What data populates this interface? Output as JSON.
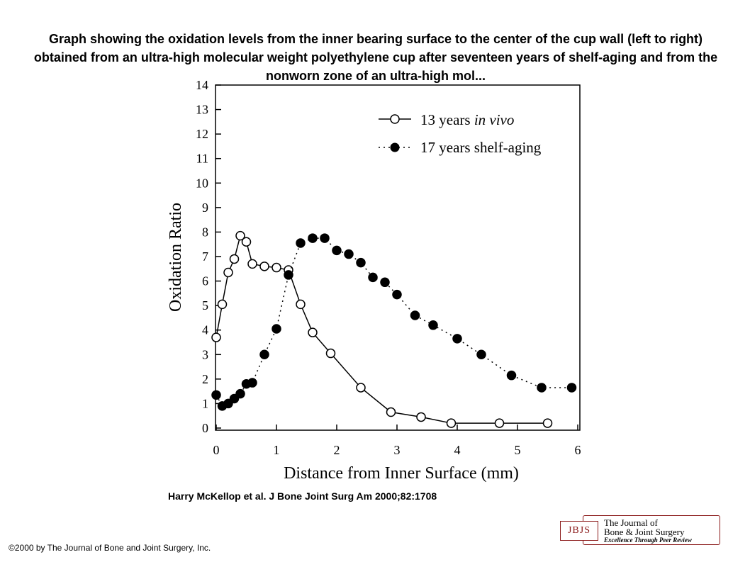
{
  "slide": {
    "title": "Graph showing the oxidation levels from the inner bearing surface to the center of the cup wall (left to right) obtained from an ultra-high molecular weight polyethylene cup after seventeen years of shelf-aging and from the nonworn zone of an ultra-high mol...",
    "citation": "Harry McKellop et al. J Bone Joint Surg Am 2000;82:1708",
    "copyright": "©2000 by The Journal of Bone and Joint Surgery, Inc."
  },
  "logo": {
    "mark": "JBJS",
    "line1": "The Journal of",
    "line2": "Bone & Joint Surgery",
    "tagline": "Excellence Through Peer Review",
    "color": "#8b1a1a"
  },
  "chart_data": {
    "type": "line",
    "title": "",
    "xlabel": "Distance from Inner Surface (mm)",
    "ylabel": "Oxidation Ratio",
    "xlim": [
      0,
      6
    ],
    "ylim": [
      0,
      14
    ],
    "xticks": [
      0,
      1,
      2,
      3,
      4,
      5,
      6
    ],
    "yticks": [
      0,
      1,
      2,
      3,
      4,
      5,
      6,
      7,
      8,
      9,
      10,
      11,
      12,
      13,
      14
    ],
    "grid": false,
    "legend_position": "top-right",
    "series": [
      {
        "name_parts": [
          "13 years ",
          "in vivo"
        ],
        "marker": "open-circle",
        "line": "solid",
        "x": [
          0.0,
          0.1,
          0.2,
          0.3,
          0.4,
          0.5,
          0.6,
          0.8,
          1.0,
          1.2,
          1.4,
          1.6,
          1.9,
          2.4,
          2.9,
          3.4,
          3.9,
          4.7,
          5.5
        ],
        "y": [
          3.7,
          5.05,
          6.35,
          6.9,
          7.85,
          7.6,
          6.7,
          6.6,
          6.55,
          6.45,
          5.05,
          3.9,
          3.05,
          1.65,
          0.65,
          0.45,
          0.2,
          0.2,
          0.2
        ]
      },
      {
        "name": "17 years shelf-aging",
        "marker": "filled-circle",
        "line": "dotted",
        "x": [
          0.0,
          0.1,
          0.2,
          0.3,
          0.4,
          0.5,
          0.6,
          0.8,
          1.0,
          1.2,
          1.4,
          1.6,
          1.8,
          2.0,
          2.2,
          2.4,
          2.6,
          2.8,
          3.0,
          3.3,
          3.6,
          4.0,
          4.4,
          4.9,
          5.4,
          5.9
        ],
        "y": [
          1.35,
          0.9,
          1.0,
          1.2,
          1.4,
          1.8,
          1.85,
          3.0,
          4.05,
          6.25,
          7.55,
          7.75,
          7.75,
          7.25,
          7.1,
          6.75,
          6.15,
          5.95,
          5.45,
          4.6,
          4.2,
          3.65,
          3.0,
          2.15,
          1.65,
          1.65
        ]
      }
    ]
  }
}
